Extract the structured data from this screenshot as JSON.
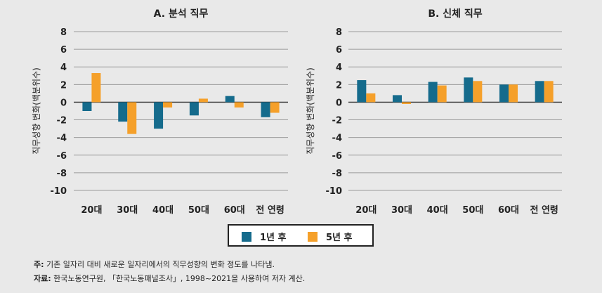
{
  "chart_data": [
    {
      "type": "bar",
      "title": "A. 분석 직무",
      "ylabel": "직무성향 변화(백분위수)",
      "categories": [
        "20대",
        "30대",
        "40대",
        "50대",
        "60대",
        "전 연령"
      ],
      "ylim": [
        -10,
        8
      ],
      "yticks": [
        "8",
        "6",
        "4",
        "2",
        "0",
        "-2",
        "-4",
        "-6",
        "-8",
        "-10"
      ],
      "series": [
        {
          "name": "1년 후",
          "color": "#156b8c",
          "values": [
            -1.0,
            -2.2,
            -3.0,
            -1.5,
            0.7,
            -1.7
          ]
        },
        {
          "name": "5년 후",
          "color": "#f5a02a",
          "values": [
            3.3,
            -3.6,
            -0.6,
            0.4,
            -0.6,
            -1.2
          ]
        }
      ]
    },
    {
      "type": "bar",
      "title": "B. 신체 직무",
      "ylabel": "직무성향 변화(백분위수)",
      "categories": [
        "20대",
        "30대",
        "40대",
        "50대",
        "60대",
        "전 연령"
      ],
      "ylim": [
        -10,
        8
      ],
      "yticks": [
        "8",
        "6",
        "4",
        "2",
        "0",
        "-2",
        "-4",
        "-6",
        "-8",
        "-10"
      ],
      "series": [
        {
          "name": "1년 후",
          "color": "#156b8c",
          "values": [
            2.5,
            0.8,
            2.3,
            2.8,
            2.0,
            2.4
          ]
        },
        {
          "name": "5년 후",
          "color": "#f5a02a",
          "values": [
            1.0,
            -0.2,
            1.9,
            2.4,
            2.0,
            2.4
          ]
        }
      ]
    }
  ],
  "legend": [
    {
      "label": "1년 후",
      "color": "#156b8c"
    },
    {
      "label": "5년 후",
      "color": "#f5a02a"
    }
  ],
  "notes": {
    "note_key": "주:",
    "note_text": "기존 일자리 대비 새로운 일자리에서의 직무성향의 변화 정도를 나타냄.",
    "source_key": "자료:",
    "source_text": "한국노동연구원, 「한국노동패널조사」, 1998~2021을 사용하여 저자 계산."
  }
}
